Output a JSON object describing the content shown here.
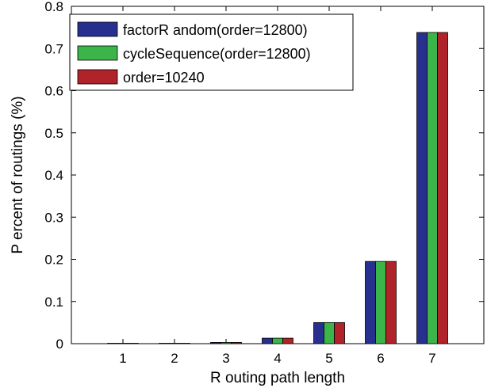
{
  "chart_data": {
    "type": "bar",
    "title": "",
    "xlabel": "R outing path length",
    "ylabel": "P ercent of routings (%)",
    "categories": [
      "1",
      "2",
      "3",
      "4",
      "5",
      "6",
      "7"
    ],
    "ylim": [
      0,
      0.8
    ],
    "yticks": [
      "0",
      "0.1",
      "0.2",
      "0.3",
      "0.4",
      "0.5",
      "0.6",
      "0.7",
      "0.8"
    ],
    "grid": false,
    "legend_position": "top-left",
    "series": [
      {
        "name": "factorR andom(order=12800)",
        "color": "#27308f",
        "values": [
          0.001,
          0.001,
          0.003,
          0.013,
          0.05,
          0.195,
          0.738
        ]
      },
      {
        "name": "cycleSequence(order=12800)",
        "color": "#3bb54a",
        "values": [
          0.001,
          0.001,
          0.003,
          0.013,
          0.05,
          0.195,
          0.738
        ]
      },
      {
        "name": "order=10240",
        "color": "#b0232a",
        "values": [
          0.001,
          0.001,
          0.003,
          0.013,
          0.05,
          0.195,
          0.738
        ]
      }
    ]
  }
}
